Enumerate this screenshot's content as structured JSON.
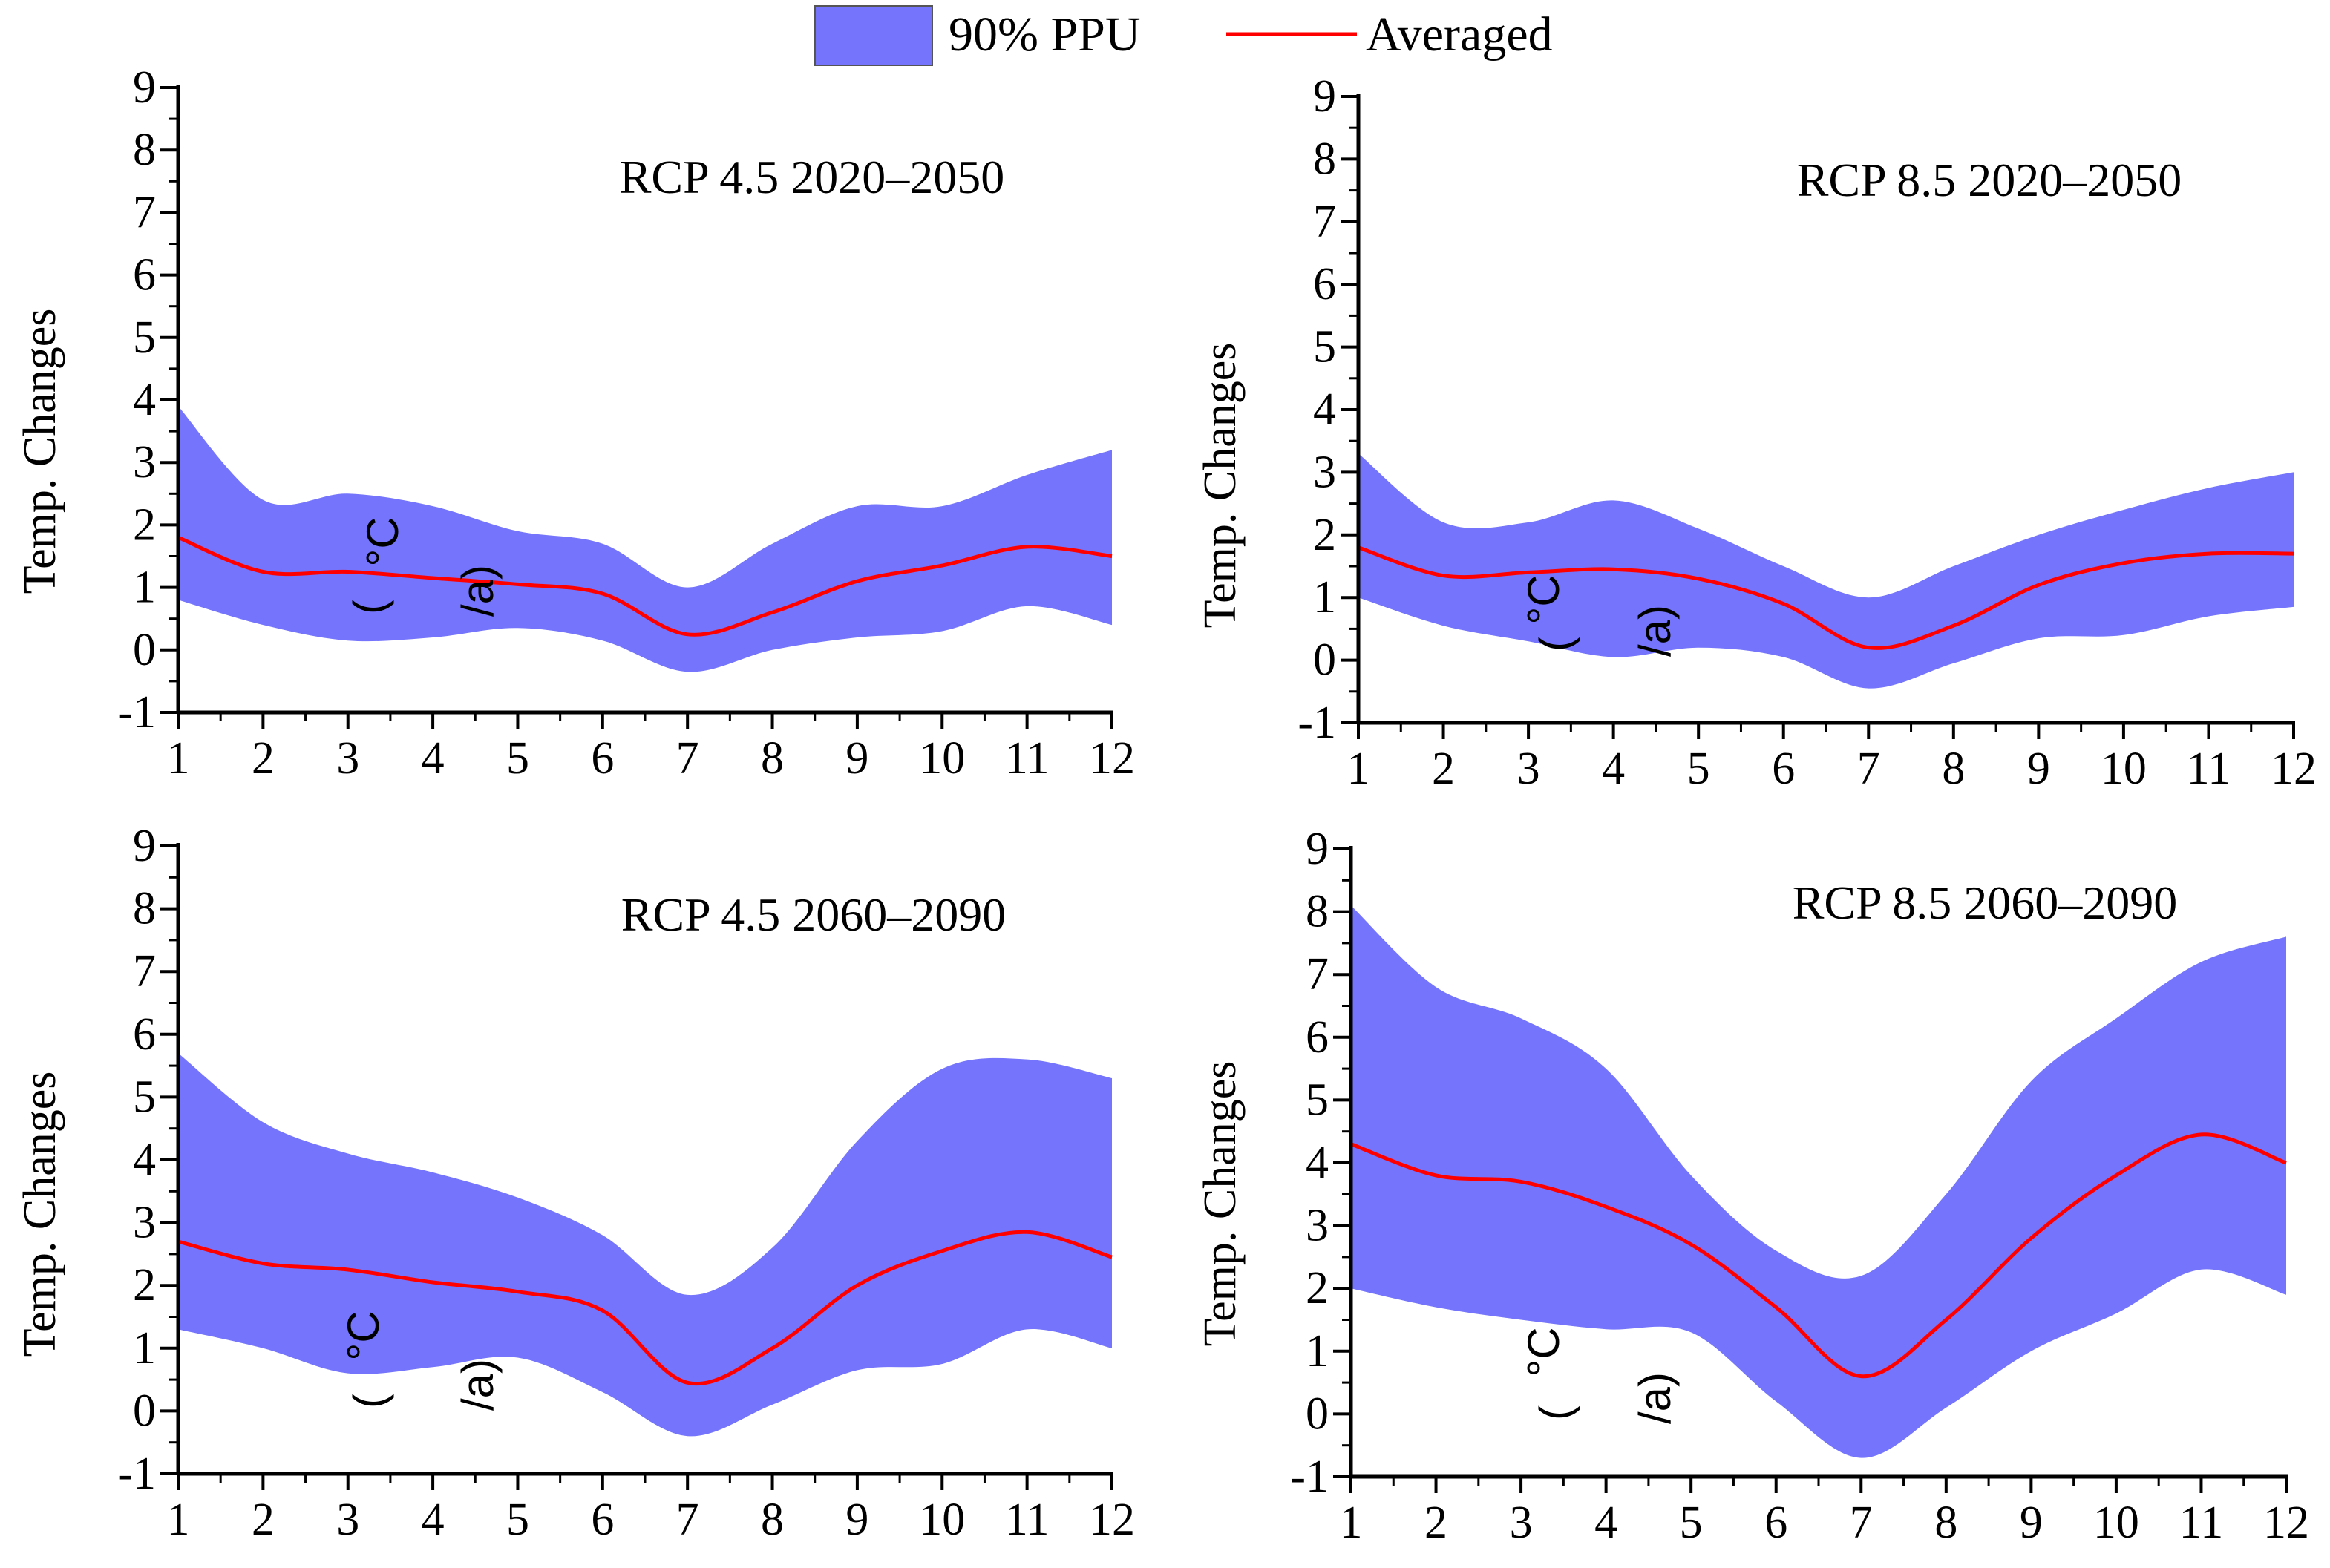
{
  "legend": {
    "band_label": "90% PPU",
    "line_label": "Averaged",
    "band_color": "#7474fc",
    "line_color": "#ff0000"
  },
  "chart_data": [
    {
      "type": "area",
      "title": "RCP 4.5 2020–2050",
      "xlabel": "",
      "ylabel": "Temp. Changes",
      "ylabel_unit_parts": [
        "(",
        "°C",
        "/a)"
      ],
      "x": [
        1,
        2,
        3,
        4,
        5,
        6,
        7,
        8,
        9,
        10,
        11,
        12
      ],
      "xlim": [
        1,
        12
      ],
      "ylim": [
        -1,
        9
      ],
      "yticks": [
        -1,
        0,
        1,
        2,
        3,
        4,
        5,
        6,
        7,
        8,
        9
      ],
      "series": [
        {
          "name": "90% PPU upper",
          "values": [
            3.9,
            2.4,
            2.5,
            2.3,
            1.9,
            1.7,
            1.0,
            1.7,
            2.3,
            2.3,
            2.8,
            3.2
          ]
        },
        {
          "name": "90% PPU lower",
          "values": [
            0.8,
            0.4,
            0.15,
            0.2,
            0.35,
            0.15,
            -0.35,
            0.0,
            0.2,
            0.3,
            0.7,
            0.4
          ]
        },
        {
          "name": "Averaged",
          "values": [
            1.8,
            1.25,
            1.25,
            1.15,
            1.05,
            0.9,
            0.25,
            0.6,
            1.1,
            1.35,
            1.65,
            1.5
          ]
        }
      ]
    },
    {
      "type": "area",
      "title": "RCP 8.5 2020–2050",
      "xlabel": "",
      "ylabel": "Temp. Changes",
      "ylabel_unit_parts": [
        "(",
        "°C",
        "/a)"
      ],
      "x": [
        1,
        2,
        3,
        4,
        5,
        6,
        7,
        8,
        9,
        10,
        11,
        12
      ],
      "xlim": [
        1,
        12
      ],
      "ylim": [
        -1,
        9
      ],
      "yticks": [
        -1,
        0,
        1,
        2,
        3,
        4,
        5,
        6,
        7,
        8,
        9
      ],
      "series": [
        {
          "name": "90% PPU upper",
          "values": [
            3.3,
            2.2,
            2.2,
            2.55,
            2.1,
            1.5,
            1.0,
            1.5,
            2.0,
            2.4,
            2.75,
            3.0
          ]
        },
        {
          "name": "90% PPU lower",
          "values": [
            1.0,
            0.55,
            0.3,
            0.05,
            0.2,
            0.05,
            -0.45,
            -0.05,
            0.35,
            0.4,
            0.7,
            0.85
          ]
        },
        {
          "name": "Averaged",
          "values": [
            1.8,
            1.35,
            1.4,
            1.45,
            1.3,
            0.9,
            0.2,
            0.55,
            1.2,
            1.55,
            1.7,
            1.7
          ]
        }
      ]
    },
    {
      "type": "area",
      "title": "RCP 4.5 2060–2090",
      "xlabel": "",
      "ylabel": "Temp. Changes",
      "ylabel_unit_parts": [
        "(",
        "°C",
        "/a)"
      ],
      "x": [
        1,
        2,
        3,
        4,
        5,
        6,
        7,
        8,
        9,
        10,
        11,
        12
      ],
      "xlim": [
        1,
        12
      ],
      "ylim": [
        -1,
        9
      ],
      "yticks": [
        -1,
        0,
        1,
        2,
        3,
        4,
        5,
        6,
        7,
        8,
        9
      ],
      "series": [
        {
          "name": "90% PPU upper",
          "values": [
            5.7,
            4.6,
            4.1,
            3.8,
            3.4,
            2.8,
            1.85,
            2.6,
            4.3,
            5.45,
            5.6,
            5.3
          ]
        },
        {
          "name": "90% PPU lower",
          "values": [
            1.3,
            1.0,
            0.6,
            0.7,
            0.85,
            0.3,
            -0.4,
            0.1,
            0.65,
            0.75,
            1.3,
            1.0
          ]
        },
        {
          "name": "Averaged",
          "values": [
            2.7,
            2.35,
            2.25,
            2.05,
            1.9,
            1.6,
            0.45,
            1.0,
            2.0,
            2.55,
            2.85,
            2.45
          ]
        }
      ]
    },
    {
      "type": "area",
      "title": "RCP 8.5 2060–2090",
      "xlabel": "",
      "ylabel": "Temp. Changes",
      "ylabel_unit_parts": [
        "(",
        "°C",
        "/a)"
      ],
      "x": [
        1,
        2,
        3,
        4,
        5,
        6,
        7,
        8,
        9,
        10,
        11,
        12
      ],
      "xlim": [
        1,
        12
      ],
      "ylim": [
        -1,
        9
      ],
      "yticks": [
        -1,
        0,
        1,
        2,
        3,
        4,
        5,
        6,
        7,
        8,
        9
      ],
      "series": [
        {
          "name": "90% PPU upper",
          "values": [
            8.1,
            6.8,
            6.3,
            5.5,
            3.8,
            2.6,
            2.2,
            3.5,
            5.3,
            6.3,
            7.2,
            7.6
          ]
        },
        {
          "name": "90% PPU lower",
          "values": [
            2.0,
            1.7,
            1.5,
            1.35,
            1.3,
            0.2,
            -0.7,
            0.1,
            1.0,
            1.6,
            2.3,
            1.9
          ]
        },
        {
          "name": "Averaged",
          "values": [
            4.3,
            3.8,
            3.7,
            3.3,
            2.7,
            1.7,
            0.6,
            1.5,
            2.8,
            3.8,
            4.45,
            4.0
          ]
        }
      ]
    }
  ]
}
